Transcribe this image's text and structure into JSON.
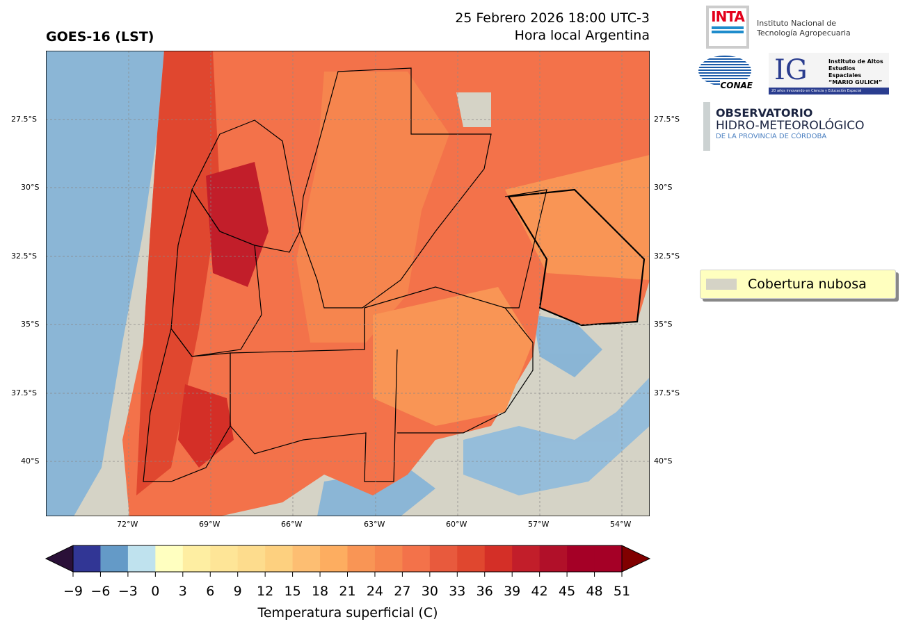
{
  "header": {
    "title": "GOES-16 (LST)",
    "datetime": "25 Febrero 2026 18:00 UTC-3",
    "local_time": "Hora local Argentina"
  },
  "map": {
    "lat_labels": [
      "27.5°S",
      "30°S",
      "32.5°S",
      "35°S",
      "37.5°S",
      "40°S"
    ],
    "lon_labels": [
      "72°W",
      "69°W",
      "66°W",
      "63°W",
      "60°W",
      "57°W",
      "54°W"
    ],
    "cloud_color": "#d5d3c6"
  },
  "logos": {
    "inta": {
      "mark": "INTA",
      "line1": "Instituto Nacional de",
      "line2": "Tecnología Agropecuaria"
    },
    "conae": {
      "mark": "CONAE"
    },
    "ig": {
      "mark": "IG",
      "line1": "Instituto de Altos",
      "line2": "Estudios Espaciales",
      "line3": "“MARIO GULICH”",
      "tagline": "20 años innovando en Ciencia y Educación Espacial"
    },
    "observatorio": {
      "line1": "OBSERVATORIO",
      "line2": "HIDRO-METEOROLÓGICO",
      "line3": "DE LA PROVINCIA DE CÓRDOBA"
    }
  },
  "legend": {
    "label": "Cobertura nubosa"
  },
  "colorbar": {
    "label": "Temperatura superficial (C)",
    "ticks": [
      "−9",
      "−6",
      "−3",
      "0",
      "3",
      "6",
      "9",
      "12",
      "15",
      "18",
      "21",
      "24",
      "27",
      "30",
      "33",
      "36",
      "39",
      "42",
      "45",
      "48",
      "51"
    ],
    "under_color": "#2a1038",
    "over_color": "#800000",
    "colors": [
      "#313695",
      "#649ac7",
      "#bfe2ee",
      "#ffffc0",
      "#feeea2",
      "#fee597",
      "#fddc8d",
      "#fdd07f",
      "#fdbe72",
      "#fdad60",
      "#f99555",
      "#f6854e",
      "#f3724a",
      "#e85a3d",
      "#e0472f",
      "#d42f27",
      "#c21e2a",
      "#b11029",
      "#a50026",
      "#a50026"
    ]
  }
}
